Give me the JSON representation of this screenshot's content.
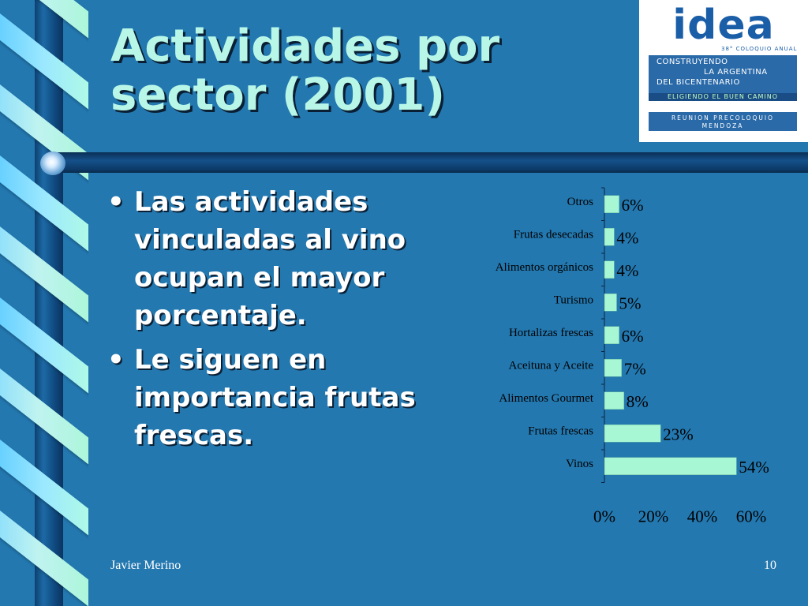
{
  "slide": {
    "title_line1": "Actividades por",
    "title_line2": "sector (2001)",
    "bullets": [
      "Las actividades vinculadas al vino ocupan el mayor porcentaje.",
      "Le siguen en importancia frutas frescas."
    ],
    "footer_author": "Javier Merino",
    "page_number": "10"
  },
  "logo": {
    "word": "idea",
    "subtitle": "38° COLOQUIO ANUAL",
    "line1": "CONSTRUYENDO",
    "line2": "LA ARGENTINA",
    "line3": "DEL BICENTENARIO",
    "tagline": "ELIGIENDO EL BUEN CAMINO",
    "event_line1": "REUNION PRECOLOQUIO",
    "event_line2": "MENDOZA"
  },
  "colors": {
    "background": "#2378b0",
    "title": "#b8f7e8",
    "bar_fill": "#a7f7d4"
  },
  "chart_data": {
    "type": "bar",
    "orientation": "horizontal",
    "categories": [
      "Otros",
      "Frutas desecadas",
      "Alimentos orgánicos",
      "Turismo",
      "Hortalizas frescas",
      "Aceituna y Aceite",
      "Alimentos Gourmet",
      "Frutas frescas",
      "Vinos"
    ],
    "values": [
      6,
      4,
      4,
      5,
      6,
      7,
      8,
      23,
      54
    ],
    "labels": [
      "6%",
      "4%",
      "4%",
      "5%",
      "6%",
      "7%",
      "8%",
      "23%",
      "54%"
    ],
    "xlim": [
      0,
      60
    ],
    "xticks": [
      "0%",
      "20%",
      "40%",
      "60%"
    ],
    "grid": false,
    "legend": "none"
  }
}
